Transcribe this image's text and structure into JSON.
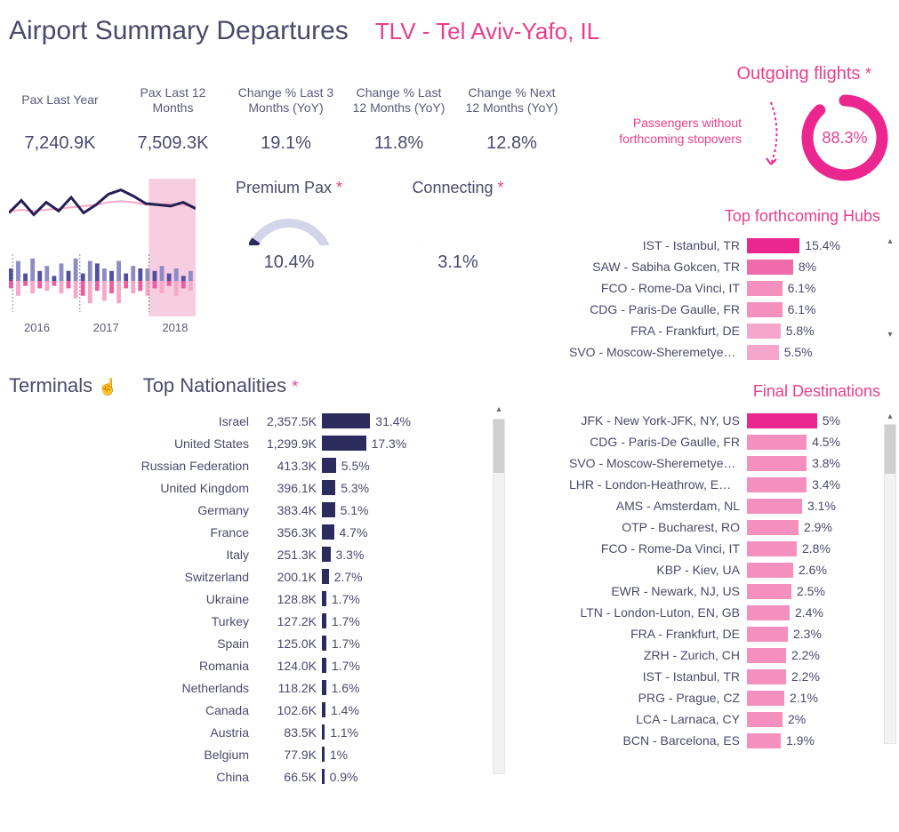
{
  "header": {
    "title": "Airport Summary Departures",
    "subtitle": "TLV - Tel Aviv-Yafo, IL"
  },
  "kpis": [
    {
      "label": "Pax Last Year",
      "value": "7,240.9K"
    },
    {
      "label": "Pax Last 12 Months",
      "value": "7,509.3K"
    },
    {
      "label": "Change % Last 3 Months (YoY)",
      "value": "19.1%"
    },
    {
      "label": "Change % Last 12 Months (YoY)",
      "value": "11.8%"
    },
    {
      "label": "Change % Next 12 Months (YoY)",
      "value": "12.8%"
    }
  ],
  "trend": {
    "years": [
      "2016",
      "2017",
      "2018"
    ],
    "line_primary_color": "#241f54",
    "line_secondary_color": "#f7a8c8",
    "highlight_fill": "#f7cde0",
    "bar_pos_color": "#524ea0",
    "bar_pos_alt_color": "#8d8bc6",
    "bar_neg_color": "#ef5c9e",
    "bar_neg_alt_color": "#f7a8c8",
    "highlight_start": 0.75,
    "line_primary": [
      0.55,
      0.35,
      0.58,
      0.38,
      0.52,
      0.3,
      0.55,
      0.42,
      0.25,
      0.18,
      0.28,
      0.4,
      0.42,
      0.44,
      0.38,
      0.48
    ],
    "line_secondary": [
      0.52,
      0.5,
      0.52,
      0.5,
      0.48,
      0.46,
      0.44,
      0.42,
      0.38,
      0.36,
      0.38,
      0.42,
      0.42,
      0.4,
      0.42,
      0.46
    ],
    "bars_top": [
      0.5,
      0.8,
      0.3,
      0.9,
      0.4,
      0.6,
      0.2,
      0.7,
      0.4,
      0.9,
      0.3,
      0.8,
      0.7,
      0.5,
      0.4,
      0.8,
      0.3,
      0.6,
      0.5,
      0.5,
      0.4,
      0.6,
      0.3,
      0.5,
      0.2,
      0.4
    ],
    "bars_bottom": [
      -0.3,
      -0.6,
      -0.2,
      -0.5,
      -0.3,
      -0.4,
      -0.2,
      -0.5,
      -0.3,
      -0.7,
      -0.6,
      -0.9,
      -0.4,
      -0.8,
      -0.5,
      -0.9,
      -0.3,
      -0.5,
      -0.4,
      -0.6,
      -0.3,
      -0.5,
      -0.2,
      -0.6,
      -0.3,
      -0.4
    ]
  },
  "premium": {
    "title": "Premium Pax",
    "value": "10.4%",
    "fraction": 0.104,
    "arc_color": "#2b2b5e",
    "arc_bg": "#d5d5ea"
  },
  "connecting": {
    "title": "Connecting",
    "value": "3.1%",
    "fraction": 0.031,
    "arc_color": "#2b2b5e",
    "arc_bg": "#ffffff"
  },
  "terminals_label": "Terminals",
  "nationalities": {
    "title": "Top Nationalities",
    "bar_color": "#2b2b5e",
    "max_pct": 31.4,
    "rows": [
      {
        "name": "Israel",
        "val": "2,357.5K",
        "pct": 31.4
      },
      {
        "name": "United States",
        "val": "1,299.9K",
        "pct": 17.3
      },
      {
        "name": "Russian Federation",
        "val": "413.3K",
        "pct": 5.5
      },
      {
        "name": "United Kingdom",
        "val": "396.1K",
        "pct": 5.3
      },
      {
        "name": "Germany",
        "val": "383.4K",
        "pct": 5.1
      },
      {
        "name": "France",
        "val": "356.3K",
        "pct": 4.7
      },
      {
        "name": "Italy",
        "val": "251.3K",
        "pct": 3.3
      },
      {
        "name": "Switzerland",
        "val": "200.1K",
        "pct": 2.7
      },
      {
        "name": "Ukraine",
        "val": "128.8K",
        "pct": 1.7
      },
      {
        "name": "Turkey",
        "val": "127.2K",
        "pct": 1.7
      },
      {
        "name": "Spain",
        "val": "125.0K",
        "pct": 1.7
      },
      {
        "name": "Romania",
        "val": "124.0K",
        "pct": 1.7
      },
      {
        "name": "Netherlands",
        "val": "118.2K",
        "pct": 1.6
      },
      {
        "name": "Canada",
        "val": "102.6K",
        "pct": 1.4
      },
      {
        "name": "Austria",
        "val": "83.5K",
        "pct": 1.1
      },
      {
        "name": "Belgium",
        "val": "77.9K",
        "pct": 1.0
      },
      {
        "name": "China",
        "val": "66.5K",
        "pct": 0.9
      }
    ]
  },
  "outgoing": {
    "title": "Outgoing flights",
    "note": "Passengers without forthcoming stopovers",
    "pct": 88.3,
    "pct_label": "88.3%",
    "ring_color": "#ec268f",
    "arrow_color": "#ec268f"
  },
  "hubs": {
    "title": "Top forthcoming Hubs",
    "bar_colors": [
      "#ec268f",
      "#f16aa9",
      "#f48fbe",
      "#f48fbe",
      "#f6a6cb",
      "#f6a6cb"
    ],
    "max_pct": 15.4,
    "rows": [
      {
        "name": "IST - Istanbul, TR",
        "pct": 15.4
      },
      {
        "name": "SAW - Sabiha Gokcen, TR",
        "pct": 8.0
      },
      {
        "name": "FCO - Rome-Da Vinci, IT",
        "pct": 6.1
      },
      {
        "name": "CDG - Paris-De Gaulle, FR",
        "pct": 6.1
      },
      {
        "name": "FRA - Frankfurt, DE",
        "pct": 5.8
      },
      {
        "name": "SVO - Moscow-Sheremetyevo, ..",
        "pct": 5.5
      }
    ]
  },
  "destinations": {
    "title": "Final Destinations",
    "bar_color_first": "#ec268f",
    "bar_color_rest": "#f48fbe",
    "max_pct": 5.0,
    "rows": [
      {
        "name": "JFK - New York-JFK, NY, US",
        "pct": 5.0
      },
      {
        "name": "CDG - Paris-De Gaulle, FR",
        "pct": 4.5
      },
      {
        "name": "SVO - Moscow-Sheremetyevo, ..",
        "pct": 3.8
      },
      {
        "name": "LHR - London-Heathrow, EN, GB",
        "pct": 3.4
      },
      {
        "name": "AMS - Amsterdam, NL",
        "pct": 3.1
      },
      {
        "name": "OTP - Bucharest, RO",
        "pct": 2.9
      },
      {
        "name": "FCO - Rome-Da Vinci, IT",
        "pct": 2.8
      },
      {
        "name": "KBP - Kiev, UA",
        "pct": 2.6
      },
      {
        "name": "EWR - Newark, NJ, US",
        "pct": 2.5
      },
      {
        "name": "LTN - London-Luton, EN, GB",
        "pct": 2.4
      },
      {
        "name": "FRA - Frankfurt, DE",
        "pct": 2.3
      },
      {
        "name": "ZRH - Zurich, CH",
        "pct": 2.2
      },
      {
        "name": "IST - Istanbul, TR",
        "pct": 2.2
      },
      {
        "name": "PRG - Prague, CZ",
        "pct": 2.1
      },
      {
        "name": "LCA - Larnaca, CY",
        "pct": 2.0
      },
      {
        "name": "BCN - Barcelona, ES",
        "pct": 1.9
      }
    ]
  }
}
